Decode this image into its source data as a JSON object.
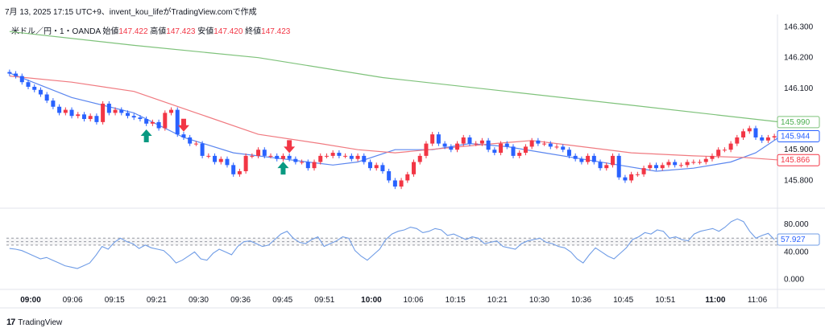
{
  "header": {
    "caption": "7月 13, 2025 17:15 UTC+9、invent_kou_lifeがTradingView.comで作成"
  },
  "legend": {
    "symbol": "米ドル／円・1・OANDA",
    "open_label": "始値",
    "open": "147.422",
    "high_label": "高値",
    "high": "147.423",
    "low_label": "安値",
    "low": "147.420",
    "close_label": "終値",
    "close": "147.423"
  },
  "colors": {
    "up": "#f23645",
    "down": "#2962ff",
    "ema_fast": "#5b86ef",
    "ema_slow": "#f07a80",
    "ema_long": "#7ec27a",
    "rsi": "#6f9ce6"
  },
  "icons": {
    "buy": "green-up-arrow-icon",
    "sell": "red-down-arrow-icon",
    "brand": "tradingview-logo-icon"
  },
  "brand": {
    "name": "TradingView"
  },
  "chart_data": [
    {
      "type": "candlestick",
      "ylim": [
        145.72,
        146.33
      ],
      "y_ticks": [
        "146.300",
        "146.200",
        "146.100",
        "145.900",
        "145.800"
      ],
      "x_ticks": [
        {
          "label": "09:00",
          "bold": true
        },
        {
          "label": "09:06"
        },
        {
          "label": "09:15"
        },
        {
          "label": "09:21"
        },
        {
          "label": "09:30"
        },
        {
          "label": "09:36"
        },
        {
          "label": "09:45"
        },
        {
          "label": "09:51"
        },
        {
          "label": "10:00",
          "bold": true
        },
        {
          "label": "10:06"
        },
        {
          "label": "10:15"
        },
        {
          "label": "10:21"
        },
        {
          "label": "10:30"
        },
        {
          "label": "10:36"
        },
        {
          "label": "10:45"
        },
        {
          "label": "10:51"
        },
        {
          "label": "11:00",
          "bold": true
        },
        {
          "label": "11:06"
        }
      ],
      "close": [
        146.148,
        146.14,
        146.12,
        146.105,
        146.095,
        146.08,
        146.06,
        146.04,
        146.02,
        146.03,
        146.01,
        146.015,
        146.0,
        146.01,
        145.99,
        146.05,
        146.02,
        146.03,
        146.02,
        146.01,
        146.005,
        146.0,
        145.985,
        145.99,
        145.97,
        146.02,
        146.03,
        145.95,
        145.94,
        145.92,
        145.92,
        145.88,
        145.88,
        145.86,
        145.87,
        145.85,
        145.82,
        145.83,
        145.88,
        145.88,
        145.9,
        145.88,
        145.88,
        145.87,
        145.88,
        145.87,
        145.86,
        145.86,
        145.84,
        145.86,
        145.88,
        145.88,
        145.89,
        145.88,
        145.88,
        145.87,
        145.88,
        145.86,
        145.84,
        145.85,
        145.83,
        145.8,
        145.78,
        145.8,
        145.82,
        145.86,
        145.88,
        145.92,
        145.95,
        145.92,
        145.91,
        145.9,
        145.92,
        145.94,
        145.92,
        145.92,
        145.93,
        145.9,
        145.89,
        145.92,
        145.91,
        145.88,
        145.89,
        145.91,
        145.93,
        145.92,
        145.92,
        145.91,
        145.91,
        145.9,
        145.88,
        145.87,
        145.86,
        145.88,
        145.86,
        145.84,
        145.85,
        145.88,
        145.81,
        145.8,
        145.82,
        145.82,
        145.84,
        145.85,
        145.84,
        145.85,
        145.86,
        145.85,
        145.85,
        145.86,
        145.86,
        145.86,
        145.87,
        145.88,
        145.9,
        145.9,
        145.92,
        145.94,
        145.96,
        145.97,
        145.94,
        145.93,
        145.94,
        145.944
      ],
      "series": [
        {
          "name": "",
          "points": [
            [
              0,
              146.15
            ],
            [
              10,
              146.07
            ],
            [
              20,
              146.02
            ],
            [
              28,
              145.94
            ],
            [
              36,
              145.89
            ],
            [
              44,
              145.87
            ],
            [
              52,
              145.85
            ],
            [
              56,
              145.86
            ],
            [
              62,
              145.9
            ],
            [
              68,
              145.9
            ],
            [
              74,
              145.92
            ],
            [
              80,
              145.91
            ],
            [
              86,
              145.89
            ],
            [
              92,
              145.87
            ],
            [
              98,
              145.85
            ],
            [
              104,
              145.83
            ],
            [
              110,
              145.84
            ],
            [
              116,
              145.86
            ],
            [
              120,
              145.89
            ],
            [
              124,
              145.944
            ]
          ]
        },
        {
          "name": "",
          "points": [
            [
              0,
              146.14
            ],
            [
              10,
              146.12
            ],
            [
              20,
              146.09
            ],
            [
              30,
              146.02
            ],
            [
              40,
              145.95
            ],
            [
              50,
              145.92
            ],
            [
              56,
              145.9
            ],
            [
              62,
              145.89
            ],
            [
              70,
              145.905
            ],
            [
              78,
              145.92
            ],
            [
              84,
              145.93
            ],
            [
              90,
              145.915
            ],
            [
              100,
              145.89
            ],
            [
              110,
              145.88
            ],
            [
              118,
              145.875
            ],
            [
              124,
              145.866
            ]
          ]
        },
        {
          "name": "",
          "points": [
            [
              0,
              146.285
            ],
            [
              20,
              146.24
            ],
            [
              40,
              146.2
            ],
            [
              60,
              146.135
            ],
            [
              80,
              146.09
            ],
            [
              100,
              146.045
            ],
            [
              124,
              145.99
            ]
          ]
        }
      ],
      "signals": [
        {
          "index": 22,
          "kind": "buy",
          "label": "B"
        },
        {
          "index": 28,
          "kind": "sell",
          "label": "S"
        },
        {
          "index": 45,
          "kind": "sell",
          "label": "S"
        },
        {
          "index": 44,
          "kind": "buy",
          "label": "B"
        }
      ],
      "price_tags": [
        {
          "value": 145.99,
          "label": "145.990",
          "color": "#7ec27a",
          "fill": "#ffffff",
          "text": "#4caf50"
        },
        {
          "value": 145.944,
          "label": "145.944",
          "color": "#2962ff",
          "fill": "#ffffff",
          "text": "#2962ff"
        },
        {
          "value": 145.866,
          "label": "145.866",
          "color": "#f23645",
          "fill": "#ffffff",
          "text": "#f23645"
        }
      ]
    },
    {
      "type": "line",
      "ylim": [
        -5,
        100
      ],
      "y_ticks": [
        "80.000",
        "40.000",
        "0.000"
      ],
      "bands": [
        50,
        55,
        60
      ],
      "values": [
        45,
        44,
        42,
        38,
        34,
        30,
        32,
        28,
        24,
        20,
        18,
        16,
        20,
        24,
        35,
        48,
        44,
        54,
        60,
        55,
        52,
        45,
        50,
        46,
        44,
        42,
        34,
        24,
        28,
        34,
        40,
        30,
        28,
        38,
        44,
        40,
        36,
        48,
        55,
        56,
        52,
        48,
        50,
        58,
        66,
        70,
        60,
        54,
        52,
        58,
        62,
        48,
        52,
        56,
        62,
        60,
        42,
        34,
        28,
        36,
        44,
        58,
        66,
        70,
        72,
        76,
        74,
        68,
        70,
        74,
        72,
        64,
        66,
        62,
        58,
        62,
        60,
        52,
        54,
        56,
        48,
        46,
        44,
        52,
        56,
        58,
        60,
        54,
        52,
        48,
        46,
        40,
        30,
        24,
        36,
        46,
        40,
        34,
        30,
        38,
        46,
        58,
        62,
        68,
        66,
        72,
        70,
        60,
        62,
        58,
        56,
        66,
        70,
        72,
        74,
        70,
        76,
        84,
        88,
        84,
        70,
        60,
        64,
        67,
        58
      ]
    }
  ]
}
